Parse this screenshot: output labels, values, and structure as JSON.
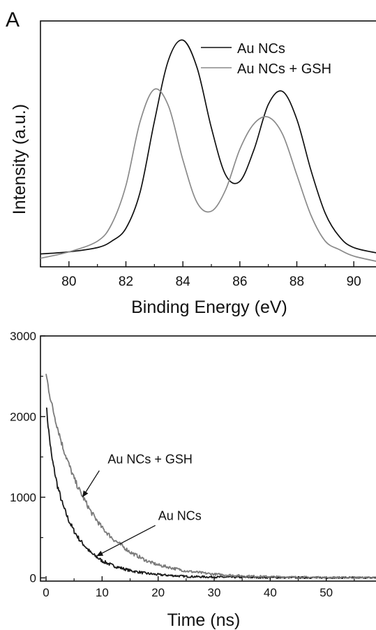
{
  "chart_data": [
    {
      "type": "line",
      "panel_label": "A",
      "xlabel": "Binding Energy (eV)",
      "ylabel": "Intensity (a.u.)",
      "xlim": [
        79,
        91
      ],
      "xticks": [
        "80",
        "82",
        "84",
        "86",
        "88",
        "90"
      ],
      "xtick_values": [
        80,
        82,
        84,
        86,
        88,
        90
      ],
      "ylim": [
        0,
        1.15
      ],
      "grid": false,
      "legend_position": "top-right",
      "series": [
        {
          "name": "Au NCs",
          "color": "#111111",
          "x": [
            79,
            80,
            81,
            81.5,
            82,
            82.5,
            83,
            83.5,
            84,
            84.5,
            85,
            85.5,
            86,
            86.5,
            87,
            87.5,
            88,
            88.5,
            89,
            89.5,
            90,
            91
          ],
          "y": [
            0.06,
            0.07,
            0.09,
            0.12,
            0.18,
            0.35,
            0.68,
            0.97,
            1.06,
            0.93,
            0.65,
            0.43,
            0.4,
            0.55,
            0.76,
            0.82,
            0.69,
            0.45,
            0.25,
            0.14,
            0.09,
            0.06
          ]
        },
        {
          "name": "Au NCs + GSH",
          "color": "#8a8a8a",
          "x": [
            79,
            80,
            81,
            81.5,
            82,
            82.5,
            83,
            83.5,
            84,
            84.5,
            85,
            85.5,
            86,
            86.5,
            87,
            87.5,
            88,
            88.5,
            89,
            89.5,
            90,
            91
          ],
          "y": [
            0.04,
            0.07,
            0.12,
            0.2,
            0.38,
            0.68,
            0.83,
            0.75,
            0.5,
            0.3,
            0.26,
            0.36,
            0.55,
            0.67,
            0.7,
            0.62,
            0.43,
            0.24,
            0.12,
            0.08,
            0.05,
            0.02
          ]
        }
      ]
    },
    {
      "type": "line",
      "xlabel": "Time (ns)",
      "ylabel": "",
      "xlim": [
        -1,
        60
      ],
      "xticks": [
        "0",
        "10",
        "20",
        "30",
        "40",
        "50",
        "60"
      ],
      "xtick_values": [
        0,
        10,
        20,
        30,
        40,
        50,
        60
      ],
      "ylim": [
        -40,
        3000
      ],
      "yticks": [
        "0",
        "1000",
        "2000",
        "3000"
      ],
      "ytick_values": [
        0,
        1000,
        2000,
        3000
      ],
      "grid": false,
      "series": [
        {
          "name": "Au NCs",
          "color": "#1a1a1a",
          "x": [
            0,
            0.5,
            1,
            2,
            3,
            4,
            5,
            6,
            8,
            10,
            12,
            15,
            18,
            20,
            25,
            30,
            40,
            50,
            60
          ],
          "y": [
            2150,
            1800,
            1500,
            1150,
            900,
            720,
            580,
            470,
            310,
            210,
            150,
            90,
            55,
            40,
            18,
            10,
            5,
            3,
            2
          ]
        },
        {
          "name": "Au NCs + GSH",
          "color": "#7a7a7a",
          "x": [
            0,
            1,
            2,
            3,
            4,
            5,
            6,
            8,
            10,
            12,
            15,
            18,
            20,
            25,
            30,
            35,
            40,
            45,
            50,
            55,
            60
          ],
          "y": [
            2520,
            2150,
            1880,
            1620,
            1420,
            1230,
            1080,
            820,
            620,
            480,
            320,
            210,
            160,
            85,
            45,
            25,
            14,
            9,
            5,
            3,
            2
          ]
        }
      ],
      "annotations": [
        {
          "text": "Au NCs + GSH",
          "target_series": "Au NCs + GSH",
          "label_x": 11,
          "label_y": 1420,
          "arrow_from": [
            9.5,
            1330
          ],
          "arrow_to": [
            6.5,
            1000
          ]
        },
        {
          "text": "Au NCs",
          "target_series": "Au NCs",
          "label_x": 20,
          "label_y": 720,
          "arrow_from": [
            19.5,
            650
          ],
          "arrow_to": [
            9,
            270
          ]
        }
      ]
    }
  ]
}
